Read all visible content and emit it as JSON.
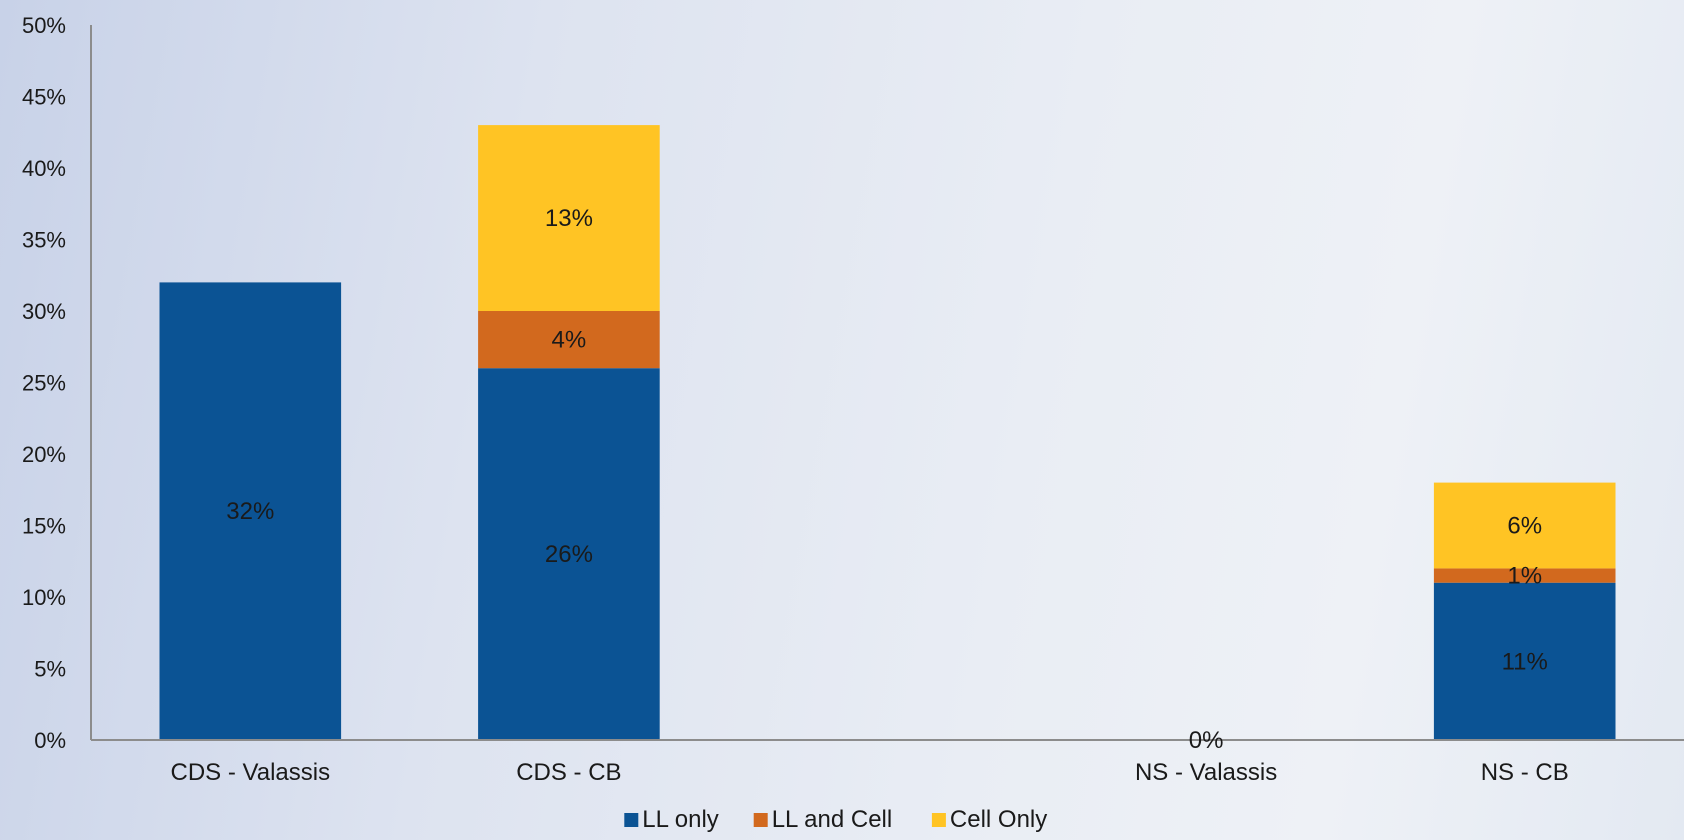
{
  "chart_data": {
    "type": "bar",
    "stacked": true,
    "categories": [
      "CDS - Valassis",
      "CDS - CB",
      "",
      "NS - Valassis",
      "NS - CB"
    ],
    "series": [
      {
        "name": "LL only",
        "color": "#0b5394",
        "values": [
          32,
          26,
          null,
          0,
          11
        ]
      },
      {
        "name": "LL and Cell",
        "color": "#d2691e",
        "values": [
          0,
          4,
          null,
          0,
          1
        ]
      },
      {
        "name": "Cell Only",
        "color": "#ffc424",
        "values": [
          0,
          13,
          null,
          0,
          6
        ]
      }
    ],
    "data_labels": [
      {
        "category": "CDS - Valassis",
        "series": "LL only",
        "text": "32%"
      },
      {
        "category": "CDS - CB",
        "series": "LL only",
        "text": "26%"
      },
      {
        "category": "CDS - CB",
        "series": "LL and Cell",
        "text": "4%"
      },
      {
        "category": "CDS - CB",
        "series": "Cell Only",
        "text": "13%"
      },
      {
        "category": "NS - Valassis",
        "series": "LL only",
        "text": "0%"
      },
      {
        "category": "NS - CB",
        "series": "LL only",
        "text": "11%"
      },
      {
        "category": "NS - CB",
        "series": "LL and Cell",
        "text": "1%"
      },
      {
        "category": "NS - CB",
        "series": "Cell Only",
        "text": "6%"
      }
    ],
    "y_ticks": [
      "0%",
      "5%",
      "10%",
      "15%",
      "20%",
      "25%",
      "30%",
      "35%",
      "40%",
      "45%",
      "50%"
    ],
    "ylim": [
      0,
      50
    ],
    "legend": "bottom-center",
    "grid": false,
    "title": "",
    "xlabel": "",
    "ylabel": ""
  }
}
